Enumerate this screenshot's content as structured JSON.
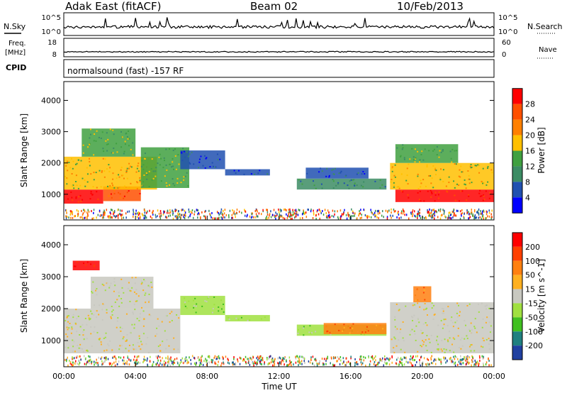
{
  "header": {
    "site": "Adak East (fitACF)",
    "beam": "Beam 02",
    "date": "10/Feb/2013"
  },
  "strip_labels": {
    "nsky": "N.Sky",
    "nsearch": "N.Search",
    "freq_line1": "Freq.",
    "freq_line2": "[MHz]",
    "nave": "Nave",
    "cpid": "CPID",
    "mode": "normalsound (fast) -157 RF"
  },
  "strip_ticks": {
    "noise_top": "10^5",
    "noise_bottom": "10^0",
    "freq_top": "18",
    "freq_bottom": "8",
    "nave_top": "60",
    "nave_bottom": "0"
  },
  "x_axis": {
    "title": "Time UT",
    "ticks": [
      "00:00",
      "04:00",
      "08:00",
      "12:00",
      "16:00",
      "20:00",
      "00:00"
    ]
  },
  "colors": {
    "power": [
      "#0000ff",
      "#2050b0",
      "#3c8c64",
      "#40a040",
      "#ffc000",
      "#ff8000",
      "#ff5000",
      "#ff0000"
    ],
    "velocity": [
      "#2040a0",
      "#208080",
      "#40c020",
      "#a0e040",
      "#c8c8c0",
      "#ffb020",
      "#ff8010",
      "#ff4000",
      "#ff0000"
    ]
  },
  "chart_data": [
    {
      "type": "heatmap",
      "name": "power",
      "xlabel": "",
      "ylabel": "Slant Range [km]",
      "xlim": [
        0,
        24
      ],
      "ylim": [
        180,
        4600
      ],
      "yticks": [
        "1000",
        "2000",
        "3000",
        "4000"
      ],
      "colorbar_label": "Power [dB]",
      "colorbar_ticks": [
        "4",
        "8",
        "12",
        "16",
        "20",
        "24",
        "28"
      ],
      "regions": [
        {
          "t0": 0.0,
          "t1": 2.2,
          "r0": 700,
          "r1": 1150,
          "level": 7
        },
        {
          "t0": 2.2,
          "t1": 4.3,
          "r0": 780,
          "r1": 1250,
          "level": 6
        },
        {
          "t0": 0.0,
          "t1": 5.2,
          "r0": 1150,
          "r1": 2200,
          "level": 4
        },
        {
          "t0": 1.0,
          "t1": 4.0,
          "r0": 2200,
          "r1": 3100,
          "level": 3
        },
        {
          "t0": 4.3,
          "t1": 7.0,
          "r0": 1200,
          "r1": 2500,
          "level": 3
        },
        {
          "t0": 6.5,
          "t1": 9.0,
          "r0": 1800,
          "r1": 2400,
          "level": 1
        },
        {
          "t0": 9.0,
          "t1": 11.5,
          "r0": 1600,
          "r1": 1800,
          "level": 1
        },
        {
          "t0": 13.0,
          "t1": 18.0,
          "r0": 1150,
          "r1": 1500,
          "level": 2
        },
        {
          "t0": 13.5,
          "t1": 17.0,
          "r0": 1500,
          "r1": 1850,
          "level": 1
        },
        {
          "t0": 18.5,
          "t1": 24.0,
          "r0": 750,
          "r1": 1150,
          "level": 7
        },
        {
          "t0": 18.2,
          "t1": 24.0,
          "r0": 1150,
          "r1": 2000,
          "level": 4
        },
        {
          "t0": 18.5,
          "t1": 22.0,
          "r0": 2000,
          "r1": 2600,
          "level": 3
        }
      ]
    },
    {
      "type": "heatmap",
      "name": "velocity",
      "xlabel": "Time UT",
      "ylabel": "Slant Range [km]",
      "xlim": [
        0,
        24
      ],
      "ylim": [
        180,
        4600
      ],
      "yticks": [
        "1000",
        "2000",
        "3000",
        "4000"
      ],
      "colorbar_label": "Velocity [m s^-1]",
      "colorbar_ticks": [
        "-200",
        "-100",
        "-50",
        "-15",
        "15",
        "50",
        "100",
        "200"
      ],
      "regions": [
        {
          "t0": 0.0,
          "t1": 6.5,
          "r0": 600,
          "r1": 2000,
          "level": 4
        },
        {
          "t0": 1.5,
          "t1": 5.0,
          "r0": 2000,
          "r1": 3000,
          "level": 4
        },
        {
          "t0": 0.5,
          "t1": 2.0,
          "r0": 3200,
          "r1": 3500,
          "level": 8
        },
        {
          "t0": 6.5,
          "t1": 9.0,
          "r0": 1800,
          "r1": 2400,
          "level": 3
        },
        {
          "t0": 9.0,
          "t1": 11.5,
          "r0": 1600,
          "r1": 1800,
          "level": 3
        },
        {
          "t0": 13.0,
          "t1": 18.0,
          "r0": 1150,
          "r1": 1500,
          "level": 3
        },
        {
          "t0": 14.5,
          "t1": 18.0,
          "r0": 1200,
          "r1": 1550,
          "level": 6
        },
        {
          "t0": 18.2,
          "t1": 24.0,
          "r0": 600,
          "r1": 2200,
          "level": 4
        },
        {
          "t0": 19.5,
          "t1": 20.5,
          "r0": 2200,
          "r1": 2700,
          "level": 6
        }
      ]
    }
  ]
}
